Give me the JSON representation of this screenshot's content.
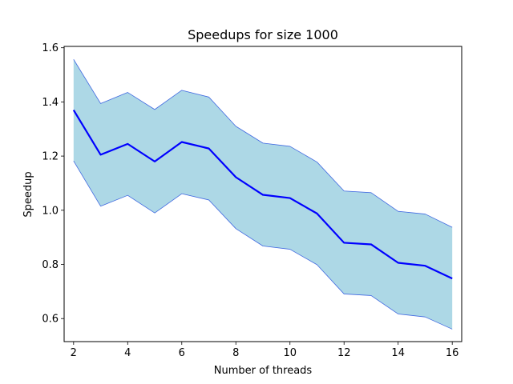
{
  "chart_data": {
    "type": "line",
    "title": "Speedups for size 1000",
    "xlabel": "Number of threads",
    "ylabel": "Speedup",
    "xlim": [
      1.65,
      16.35
    ],
    "ylim": [
      0.515,
      1.605
    ],
    "xticks": [
      2,
      4,
      6,
      8,
      10,
      12,
      14,
      16
    ],
    "yticks": [
      0.6,
      0.8,
      1.0,
      1.2,
      1.4,
      1.6
    ],
    "ytick_labels": [
      "0.6",
      "0.8",
      "1.0",
      "1.2",
      "1.4",
      "1.6"
    ],
    "grid": false,
    "colors": {
      "mean_line": "#0000ff",
      "band_fill": "#add8e6",
      "band_edge": "#4169e1"
    },
    "x": [
      2,
      3,
      4,
      5,
      6,
      7,
      8,
      9,
      10,
      11,
      12,
      13,
      14,
      15,
      16
    ],
    "series": [
      {
        "role": "mean",
        "values": [
          1.37,
          1.205,
          1.245,
          1.18,
          1.252,
          1.228,
          1.122,
          1.057,
          1.045,
          0.988,
          0.88,
          0.874,
          0.806,
          0.795,
          0.748
        ]
      },
      {
        "role": "upper",
        "values": [
          1.557,
          1.394,
          1.435,
          1.372,
          1.443,
          1.418,
          1.31,
          1.248,
          1.236,
          1.178,
          1.071,
          1.065,
          0.996,
          0.986,
          0.937
        ]
      },
      {
        "role": "lower",
        "values": [
          1.182,
          1.015,
          1.055,
          0.99,
          1.061,
          1.038,
          0.932,
          0.868,
          0.856,
          0.799,
          0.691,
          0.685,
          0.617,
          0.606,
          0.561
        ]
      }
    ]
  }
}
